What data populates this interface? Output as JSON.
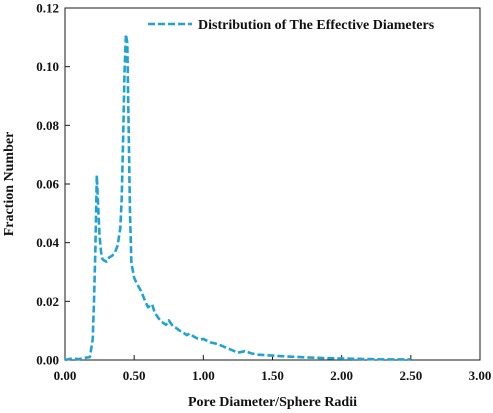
{
  "chart_data": {
    "type": "line",
    "title": "",
    "xlabel": "Pore Diameter/Sphere Radii",
    "ylabel": "Fraction Number",
    "xlim": [
      0,
      3.0
    ],
    "ylim": [
      0,
      0.12
    ],
    "x_ticks": [
      "0.00",
      "0.50",
      "1.00",
      "1.50",
      "2.00",
      "2.50",
      "3.00"
    ],
    "x_tick_values": [
      0,
      0.5,
      1.0,
      1.5,
      2.0,
      2.5,
      3.0
    ],
    "y_ticks": [
      "0.00",
      "0.02",
      "0.04",
      "0.06",
      "0.08",
      "0.10",
      "0.12"
    ],
    "y_tick_values": [
      0,
      0.02,
      0.04,
      0.06,
      0.08,
      0.1,
      0.12
    ],
    "grid": false,
    "legend_position": "top-right",
    "series": [
      {
        "name": "Distribution of The Effective Diameters",
        "color": "#1fa3d6",
        "line_style": "dashed",
        "x": [
          0.0,
          0.05,
          0.1,
          0.15,
          0.18,
          0.2,
          0.21,
          0.22,
          0.23,
          0.24,
          0.25,
          0.26,
          0.27,
          0.28,
          0.3,
          0.32,
          0.34,
          0.36,
          0.38,
          0.4,
          0.41,
          0.42,
          0.43,
          0.44,
          0.45,
          0.46,
          0.47,
          0.48,
          0.5,
          0.52,
          0.55,
          0.58,
          0.6,
          0.63,
          0.65,
          0.68,
          0.7,
          0.73,
          0.75,
          0.78,
          0.8,
          0.83,
          0.85,
          0.88,
          0.9,
          0.93,
          0.95,
          0.98,
          1.0,
          1.05,
          1.1,
          1.15,
          1.2,
          1.25,
          1.3,
          1.35,
          1.4,
          1.5,
          1.6,
          1.7,
          1.8,
          1.9,
          2.0,
          2.1,
          2.2,
          2.3,
          2.4,
          2.5
        ],
        "y": [
          0.0,
          0.0005,
          0.0003,
          0.0008,
          0.001,
          0.007,
          0.02,
          0.038,
          0.063,
          0.052,
          0.042,
          0.037,
          0.0345,
          0.034,
          0.0335,
          0.035,
          0.0355,
          0.0365,
          0.039,
          0.045,
          0.055,
          0.075,
          0.098,
          0.111,
          0.108,
          0.08,
          0.05,
          0.033,
          0.028,
          0.026,
          0.0235,
          0.02,
          0.018,
          0.019,
          0.016,
          0.014,
          0.013,
          0.012,
          0.0135,
          0.0115,
          0.011,
          0.01,
          0.0095,
          0.0085,
          0.009,
          0.008,
          0.0075,
          0.007,
          0.0072,
          0.006,
          0.0055,
          0.0045,
          0.0035,
          0.0025,
          0.003,
          0.0022,
          0.0018,
          0.0015,
          0.0012,
          0.001,
          0.0008,
          0.0006,
          0.0005,
          0.0004,
          0.0003,
          0.0002,
          0.0002,
          0.0002
        ]
      }
    ]
  }
}
